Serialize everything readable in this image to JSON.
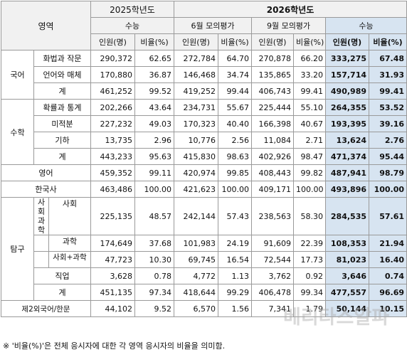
{
  "headers": {
    "area": "영역",
    "y2025": "2025학년도",
    "y2026": "2026학년도",
    "suneung": "수능",
    "june": "6월 모의평가",
    "sept": "9월 모의평가",
    "suneung2026": "수능",
    "count": "인원(명)",
    "ratio": "비율(%)"
  },
  "groups": {
    "korean": "국어",
    "math": "수학",
    "english": "영어",
    "history": "한국사",
    "inquiry": "탐구",
    "social_science": "사회\n과학",
    "second_lang": "제2외국어/한문"
  },
  "rows": {
    "kor_speech": {
      "label": "화법과 작문",
      "v": [
        "290,372",
        "62.65",
        "272,784",
        "64.70",
        "270,878",
        "66.20",
        "333,275",
        "67.48"
      ]
    },
    "kor_lang": {
      "label": "언어와 매체",
      "v": [
        "170,880",
        "36.87",
        "146,468",
        "34.74",
        "135,865",
        "33.20",
        "157,714",
        "31.93"
      ]
    },
    "kor_total": {
      "label": "계",
      "v": [
        "461,252",
        "99.52",
        "419,252",
        "99.44",
        "406,743",
        "99.41",
        "490,989",
        "99.41"
      ]
    },
    "math_prob": {
      "label": "확률과 통계",
      "v": [
        "202,266",
        "43.64",
        "234,731",
        "55.67",
        "225,444",
        "55.10",
        "264,355",
        "53.52"
      ]
    },
    "math_calc": {
      "label": "미적분",
      "v": [
        "227,232",
        "49.03",
        "170,323",
        "40.40",
        "166,398",
        "40.67",
        "193,395",
        "39.16"
      ]
    },
    "math_geo": {
      "label": "기하",
      "v": [
        "13,735",
        "2.96",
        "10,776",
        "2.56",
        "11,084",
        "2.71",
        "13,624",
        "2.76"
      ]
    },
    "math_total": {
      "label": "계",
      "v": [
        "443,233",
        "95.63",
        "415,830",
        "98.63",
        "402,926",
        "98.47",
        "471,374",
        "95.44"
      ]
    },
    "english": {
      "v": [
        "459,352",
        "99.11",
        "420,974",
        "99.85",
        "408,443",
        "99.82",
        "487,941",
        "98.79"
      ]
    },
    "history": {
      "v": [
        "463,486",
        "100.00",
        "421,623",
        "100.00",
        "409,171",
        "100.00",
        "493,896",
        "100.00"
      ]
    },
    "inq_social": {
      "label": "사회",
      "v": [
        "225,135",
        "48.57",
        "242,144",
        "57.43",
        "238,563",
        "58.30",
        "284,535",
        "57.61"
      ]
    },
    "inq_science": {
      "label": "과학",
      "v": [
        "174,649",
        "37.68",
        "101,983",
        "24.19",
        "91,609",
        "22.39",
        "108,353",
        "21.94"
      ]
    },
    "inq_mixed": {
      "label": "사회+과학",
      "v": [
        "47,723",
        "10.30",
        "69,745",
        "16.54",
        "72,544",
        "17.73",
        "81,023",
        "16.40"
      ]
    },
    "inq_voc": {
      "label": "직업",
      "v": [
        "3,628",
        "0.78",
        "4,772",
        "1.13",
        "3,762",
        "0.92",
        "3,646",
        "0.74"
      ]
    },
    "inq_total": {
      "label": "계",
      "v": [
        "451,135",
        "97.34",
        "418,644",
        "99.29",
        "406,478",
        "99.34",
        "477,557",
        "96.69"
      ]
    },
    "second": {
      "v": [
        "44,102",
        "9.52",
        "6,570",
        "1.56",
        "7,341",
        "1.79",
        "50,144",
        "10.15"
      ]
    }
  },
  "footnote": "※ '비율(%)'은 전체 응시자에 대한 각 영역 응시자의 비율을 의미함.",
  "watermark": "베리타스알파"
}
